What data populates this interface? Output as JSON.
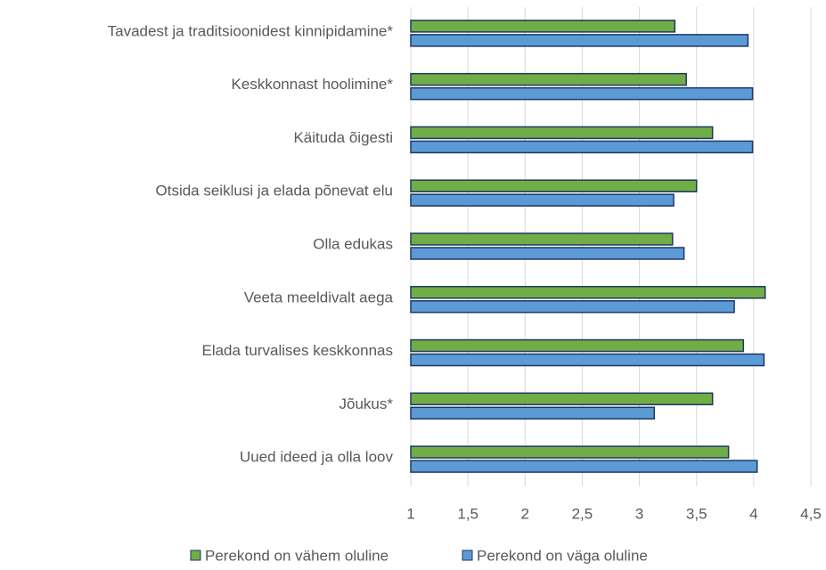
{
  "chart_data": {
    "type": "bar",
    "orientation": "horizontal",
    "categories": [
      "Tavadest ja traditsioonidest kinnipidamine*",
      "Keskkonnast hoolimine*",
      "Käituda õigesti",
      "Otsida seiklusi ja elada põnevat elu",
      "Olla edukas",
      "Veeta meeldivalt aega",
      "Elada turvalises keskkonnas",
      "Jõukus*",
      "Uued ideed ja olla loov"
    ],
    "series": [
      {
        "name": "Perekond on vähem oluline",
        "color": "#70ad47",
        "values": [
          3.31,
          3.41,
          3.64,
          3.5,
          3.29,
          4.1,
          3.91,
          3.64,
          3.78
        ]
      },
      {
        "name": "Perekond on väga oluline",
        "color": "#5b9bd5",
        "values": [
          3.95,
          3.99,
          3.99,
          3.3,
          3.39,
          3.83,
          4.09,
          3.13,
          4.03
        ]
      }
    ],
    "xlim": [
      1,
      4.5
    ],
    "xticks": [
      1,
      {
        "value": 1.5,
        "label": "1,5"
      },
      2,
      {
        "value": 2.5,
        "label": "2,5"
      },
      3,
      {
        "value": 3.5,
        "label": "3,5"
      },
      4,
      {
        "value": 4.5,
        "label": "4,5"
      }
    ],
    "grid": true,
    "legend": "bottom"
  }
}
